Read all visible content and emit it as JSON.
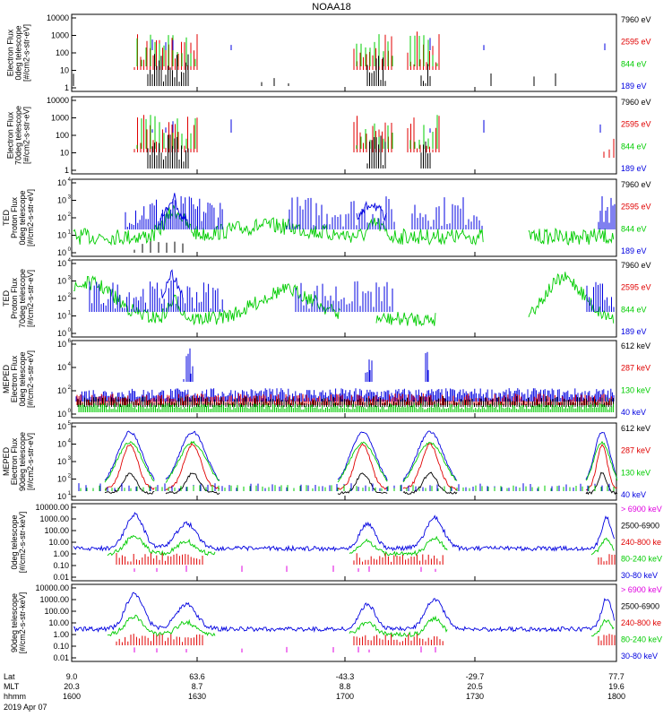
{
  "title": "NOAA18",
  "colors": {
    "black": "#000000",
    "red": "#e00000",
    "green": "#00cc00",
    "blue": "#0000e0",
    "magenta": "#e000e0"
  },
  "panels": [
    {
      "id": "p1",
      "ylabel": [
        "Electron Flux",
        "0deg telescope",
        "[#/cm2-s-str-eV]"
      ],
      "ticks": [
        "10000",
        "1000",
        "100",
        "10",
        "1"
      ],
      "legend": [
        {
          "t": "7960 eV",
          "c": "black"
        },
        {
          "t": "2595 eV",
          "c": "red"
        },
        {
          "t": "844 eV",
          "c": "green"
        },
        {
          "t": "189 eV",
          "c": "blue"
        }
      ]
    },
    {
      "id": "p2",
      "ylabel": [
        "Electron Flux",
        "70deg telescope",
        "[#/cm2-s-str-eV]"
      ],
      "ticks": [
        "10000",
        "1000",
        "100",
        "10",
        "1"
      ],
      "legend": [
        {
          "t": "7960 eV",
          "c": "black"
        },
        {
          "t": "2595 eV",
          "c": "red"
        },
        {
          "t": "844 eV",
          "c": "green"
        },
        {
          "t": "189 eV",
          "c": "blue"
        }
      ]
    },
    {
      "id": "p3",
      "ylabel": [
        "TED",
        "Proton Flux",
        "0deg telescope",
        "[#/cm2-s-str-eV]"
      ],
      "ticks": [
        "10",
        "10",
        "10",
        "10",
        "10"
      ],
      "exps": [
        "4",
        "3",
        "2",
        "1",
        "0"
      ],
      "legend": [
        {
          "t": "7960 eV",
          "c": "black"
        },
        {
          "t": "2595 eV",
          "c": "red"
        },
        {
          "t": "844 eV",
          "c": "green"
        },
        {
          "t": "189 eV",
          "c": "blue"
        }
      ]
    },
    {
      "id": "p4",
      "ylabel": [
        "TED",
        "Proton Flux",
        "70deg telescope",
        "[#/cm2-s-str-eV]"
      ],
      "ticks": [
        "10",
        "10",
        "10",
        "10",
        "10"
      ],
      "exps": [
        "4",
        "3",
        "2",
        "1",
        "0"
      ],
      "legend": [
        {
          "t": "7960 eV",
          "c": "black"
        },
        {
          "t": "2595 eV",
          "c": "red"
        },
        {
          "t": "844 eV",
          "c": "green"
        },
        {
          "t": "189 eV",
          "c": "blue"
        }
      ]
    },
    {
      "id": "p5",
      "ylabel": [
        "MEPED",
        "Electron Flux",
        "0deg telescope",
        "[#/cm2-s-str-eV]"
      ],
      "ticks": [
        "10",
        "10",
        "10",
        "10"
      ],
      "exps": [
        "6",
        "4",
        "2",
        "0"
      ],
      "legend": [
        {
          "t": "612 keV",
          "c": "black"
        },
        {
          "t": "287 keV",
          "c": "red"
        },
        {
          "t": "130 keV",
          "c": "green"
        },
        {
          "t": "40 keV",
          "c": "blue"
        }
      ]
    },
    {
      "id": "p6",
      "ylabel": [
        "MEPED",
        "Electron Flux",
        "90deg telescope",
        "[#/cm2-s-str-eV]"
      ],
      "ticks": [
        "10",
        "10",
        "10",
        "10",
        "10"
      ],
      "exps": [
        "5",
        "4",
        "3",
        "2",
        "1"
      ],
      "legend": [
        {
          "t": "612 keV",
          "c": "black"
        },
        {
          "t": "287 keV",
          "c": "red"
        },
        {
          "t": "130 keV",
          "c": "green"
        },
        {
          "t": "40 keV",
          "c": "blue"
        }
      ]
    },
    {
      "id": "p7",
      "ylabel": [
        "0deg telescope",
        "[#/cm2-s-str-keV]"
      ],
      "ticks": [
        "10000.00",
        "1000.00",
        "100.00",
        "10.00",
        "1.00",
        "0.10",
        "0.01"
      ],
      "legend": [
        {
          "t": "> 6900 keV",
          "c": "magenta"
        },
        {
          "t": "2500-6900",
          "c": "black"
        },
        {
          "t": "240-800 ke",
          "c": "red"
        },
        {
          "t": "80-240 keV",
          "c": "green"
        },
        {
          "t": "30-80 keV",
          "c": "blue"
        }
      ]
    },
    {
      "id": "p8",
      "ylabel": [
        "90deg telescope",
        "[#/cm2-s-str-keV]"
      ],
      "ticks": [
        "10000.00",
        "1000.00",
        "100.00",
        "10.00",
        "1.00",
        "0.10",
        "0.01"
      ],
      "legend": [
        {
          "t": "> 6900 keV",
          "c": "magenta"
        },
        {
          "t": "2500-6900",
          "c": "black"
        },
        {
          "t": "240-800 ke",
          "c": "red"
        },
        {
          "t": "80-240 keV",
          "c": "green"
        },
        {
          "t": "30-80 keV",
          "c": "blue"
        }
      ]
    }
  ],
  "xaxis": {
    "row_labels": [
      "Lat",
      "MLT",
      "hhmm"
    ],
    "date": "2019 Apr 07",
    "ticks": [
      {
        "lat": "9.0",
        "mlt": "20.3",
        "hhmm": "1600"
      },
      {
        "lat": "63.6",
        "mlt": "8.7",
        "hhmm": "1630"
      },
      {
        "lat": "-43.3",
        "mlt": "8.8",
        "hhmm": "1700"
      },
      {
        "lat": "-29.7",
        "mlt": "20.5",
        "hhmm": "1730"
      },
      {
        "lat": "77.7",
        "mlt": "19.6",
        "hhmm": "1800"
      }
    ]
  },
  "chart_data": {
    "type": "line",
    "title": "NOAA18",
    "x": [
      "1600",
      "1630",
      "1700",
      "1730",
      "1800"
    ],
    "series": [
      {
        "name": "7960 eV"
      },
      {
        "name": "2595 eV"
      },
      {
        "name": "844 eV"
      },
      {
        "name": "189 eV"
      },
      {
        "name": "612 keV"
      },
      {
        "name": "287 keV"
      },
      {
        "name": "130 keV"
      },
      {
        "name": "40 keV"
      },
      {
        "name": "> 6900 keV"
      },
      {
        "name": "2500-6900"
      },
      {
        "name": "240-800 ke"
      },
      {
        "name": "80-240 keV"
      },
      {
        "name": "30-80 keV"
      }
    ]
  }
}
